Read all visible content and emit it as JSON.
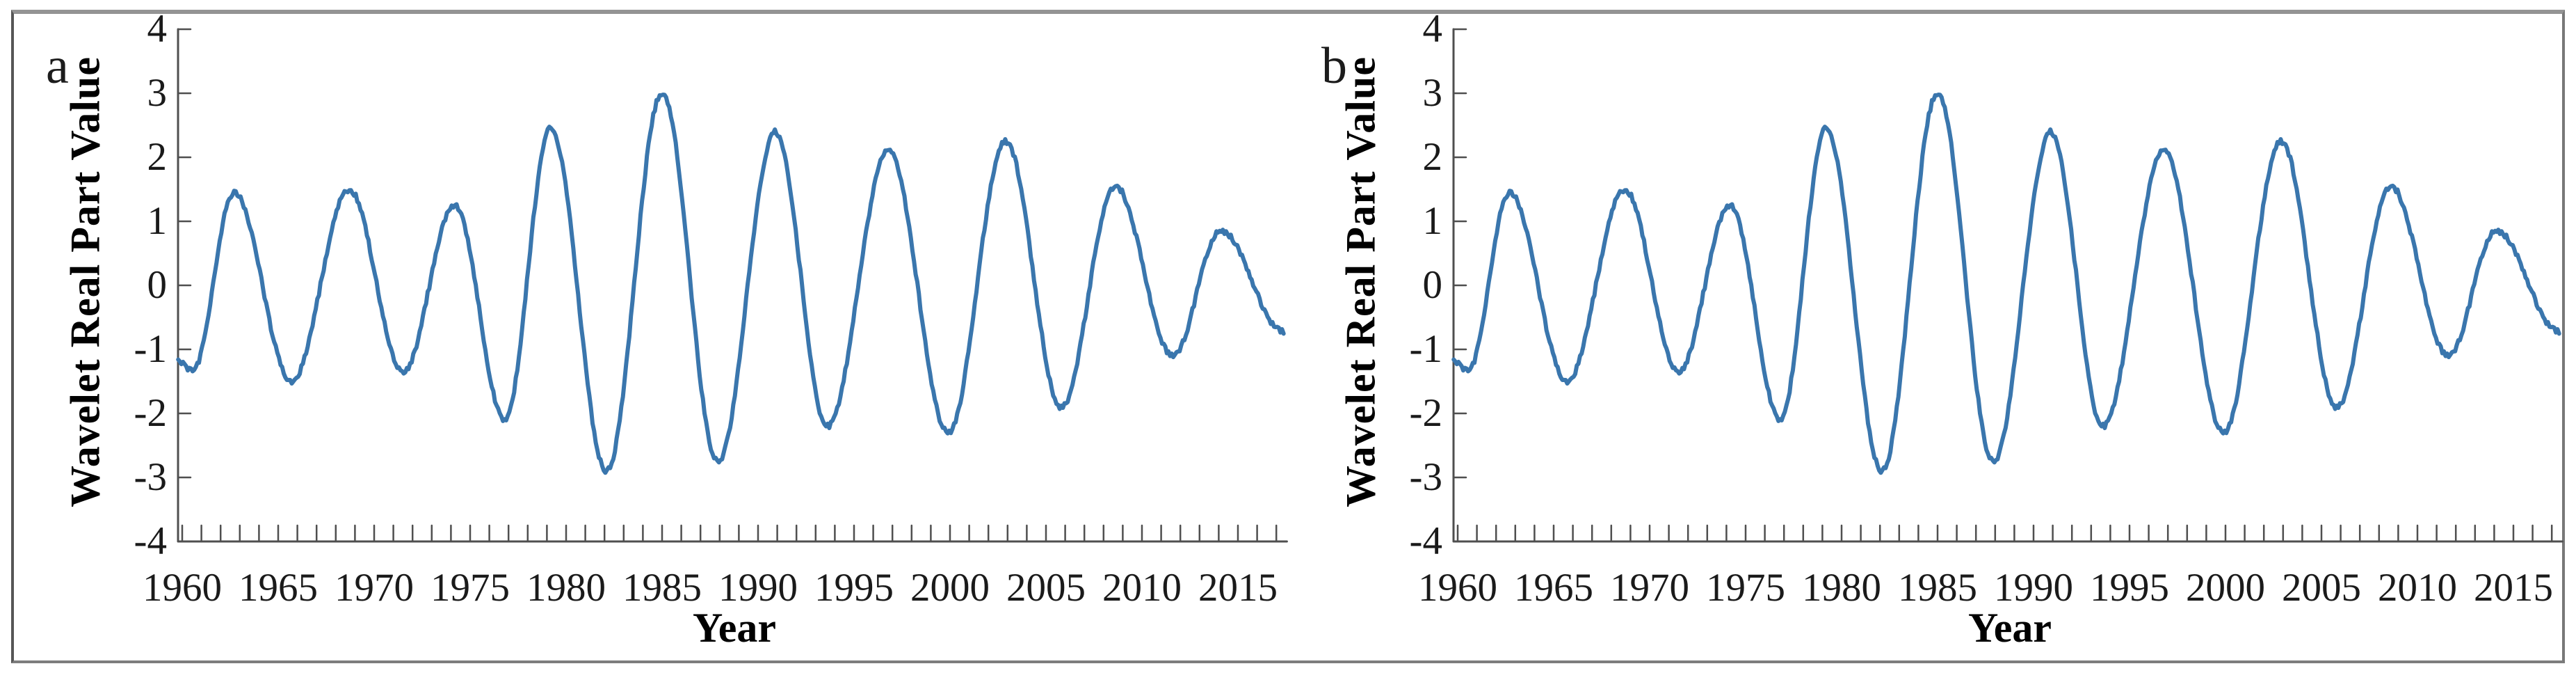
{
  "figure": {
    "background": "#ffffff",
    "border_color": "#8a8a8a",
    "panels": [
      {
        "label": "a"
      },
      {
        "label": "b"
      }
    ],
    "axes": {
      "y_label": "Wavelet Real Part Value",
      "x_label": "Year"
    }
  },
  "chart_data": [
    {
      "type": "line",
      "panel_label": "a",
      "title": "",
      "xlabel": "Year",
      "ylabel": "Wavelet Real Part Value",
      "xlim": [
        1959.8,
        2017.6
      ],
      "ylim": [
        -4,
        4
      ],
      "y_tick_labels": [
        "4",
        "3",
        "2",
        "1",
        "0",
        "-1",
        "-2",
        "-3",
        "-4"
      ],
      "x_tick_labels": [
        "1960",
        "1965",
        "1970",
        "1975",
        "1980",
        "1985",
        "1990",
        "1995",
        "2000",
        "2005",
        "2010",
        "2015"
      ],
      "x_minor_tick_every_years": 1,
      "grid": false,
      "legend": false,
      "line_color": "#3a76ad",
      "axis_color": "#4f4f4f",
      "series": [
        {
          "name": "wavelet real part",
          "sampling": "monthly, noisy oscillation; values below are the extrema (year, value) read off the plot",
          "extrema_points": [
            [
              1959.79,
              -1.18
            ],
            [
              1960.55,
              -1.33
            ],
            [
              1962.7,
              1.45
            ],
            [
              1965.7,
              -1.5
            ],
            [
              1968.7,
              1.5
            ],
            [
              1971.5,
              -1.35
            ],
            [
              1974.2,
              1.25
            ],
            [
              1976.8,
              -2.1
            ],
            [
              1979.2,
              2.45
            ],
            [
              1982.1,
              -2.9
            ],
            [
              1985.0,
              3.0
            ],
            [
              1987.9,
              -2.75
            ],
            [
              1990.9,
              2.4
            ],
            [
              1993.6,
              -2.2
            ],
            [
              1996.8,
              2.1
            ],
            [
              1999.9,
              -2.3
            ],
            [
              2002.9,
              2.25
            ],
            [
              2005.8,
              -1.9
            ],
            [
              2008.6,
              1.55
            ],
            [
              2011.6,
              -1.1
            ],
            [
              2014.1,
              0.85
            ],
            [
              2017.38,
              -0.72
            ]
          ]
        }
      ]
    },
    {
      "type": "line",
      "panel_label": "b",
      "title": "",
      "xlabel": "Year",
      "ylabel": "Wavelet Real Part Value",
      "xlim": [
        1959.8,
        2017.6
      ],
      "ylim": [
        -4,
        4
      ],
      "y_tick_labels": [
        "4",
        "3",
        "2",
        "1",
        "0",
        "-1",
        "-2",
        "-3",
        "-4"
      ],
      "x_tick_labels": [
        "1960",
        "1965",
        "1970",
        "1975",
        "1980",
        "1985",
        "1990",
        "1995",
        "2000",
        "2005",
        "2010",
        "2015"
      ],
      "x_minor_tick_every_years": 1,
      "grid": false,
      "legend": false,
      "line_color": "#3a76ad",
      "axis_color": "#4f4f4f",
      "series": [
        {
          "name": "wavelet real part",
          "sampling": "monthly, noisy oscillation; identical to panel a; values below are the extrema (year, value) read off the plot",
          "extrema_points": [
            [
              1959.79,
              -1.18
            ],
            [
              1960.55,
              -1.33
            ],
            [
              1962.7,
              1.45
            ],
            [
              1965.7,
              -1.5
            ],
            [
              1968.7,
              1.5
            ],
            [
              1971.5,
              -1.35
            ],
            [
              1974.2,
              1.25
            ],
            [
              1976.8,
              -2.1
            ],
            [
              1979.2,
              2.45
            ],
            [
              1982.1,
              -2.9
            ],
            [
              1985.0,
              3.0
            ],
            [
              1987.9,
              -2.75
            ],
            [
              1990.9,
              2.4
            ],
            [
              1993.6,
              -2.2
            ],
            [
              1996.8,
              2.1
            ],
            [
              1999.9,
              -2.3
            ],
            [
              2002.9,
              2.25
            ],
            [
              2005.8,
              -1.9
            ],
            [
              2008.6,
              1.55
            ],
            [
              2011.6,
              -1.1
            ],
            [
              2014.1,
              0.85
            ],
            [
              2017.38,
              -0.72
            ]
          ]
        }
      ]
    }
  ]
}
